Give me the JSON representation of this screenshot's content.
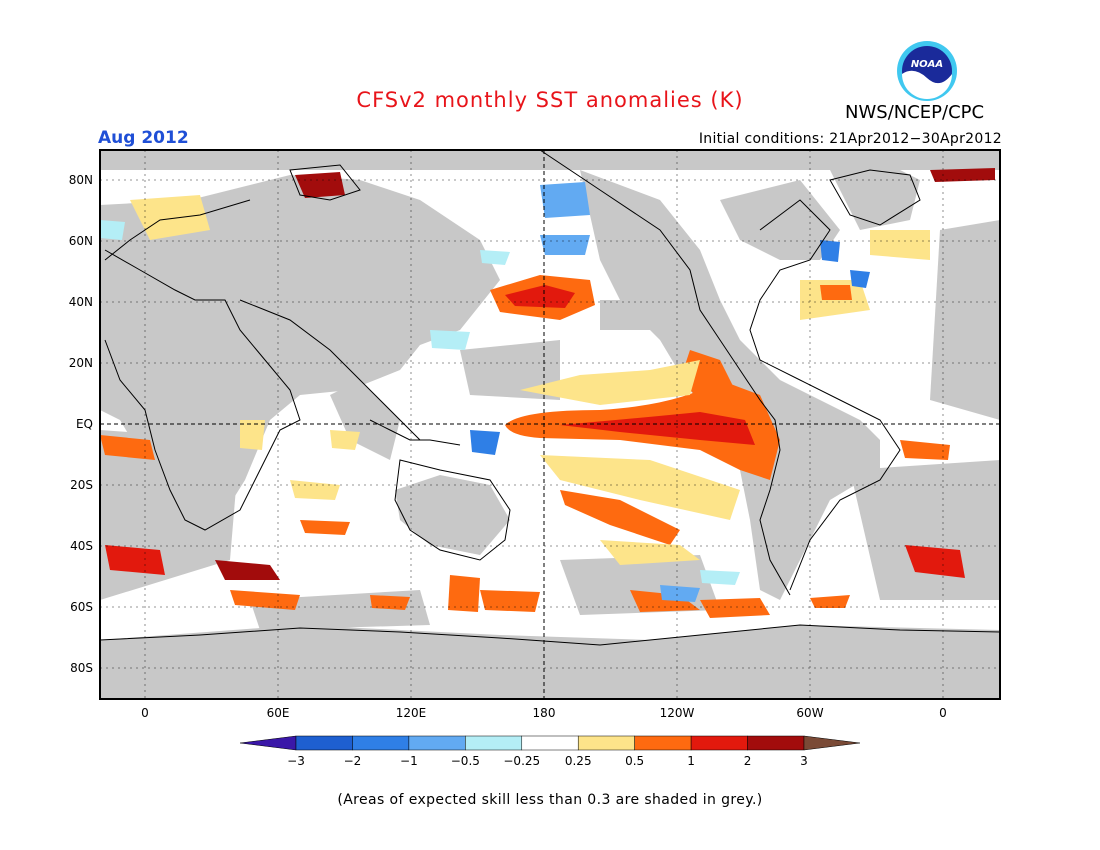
{
  "title": "CFSv2 monthly SST anomalies (K)",
  "month": "Aug 2012",
  "agency": "NWS/NCEP/CPC",
  "logo_text": "NOAA",
  "initial_conditions": "Initial conditions: 21Apr2012−30Apr2012",
  "footnote": "(Areas of expected skill less than 0.3 are shaded in grey.)",
  "lat_labels": [
    "80N",
    "60N",
    "40N",
    "20N",
    "EQ",
    "20S",
    "40S",
    "60S",
    "80S"
  ],
  "lon_labels": [
    "0",
    "60E",
    "120E",
    "180",
    "120W",
    "60W",
    "0"
  ],
  "colorbar": {
    "labels": [
      "−3",
      "−2",
      "−1",
      "−0.5",
      "−0.25",
      "0.25",
      "0.5",
      "1",
      "2",
      "3"
    ],
    "colors": [
      "#3a17a8",
      "#1e5fd0",
      "#2f7fe6",
      "#62aaf2",
      "#b4eef6",
      "#ffffff",
      "#fde48a",
      "#fe6a10",
      "#e2190d",
      "#a20c0c",
      "#7a4a36"
    ]
  },
  "colors": {
    "land": "#c8c8c8",
    "skill_grey": "#c8c8c8",
    "ocean": "#ffffff",
    "title": "#e8141a",
    "month": "#1f4fd6"
  }
}
